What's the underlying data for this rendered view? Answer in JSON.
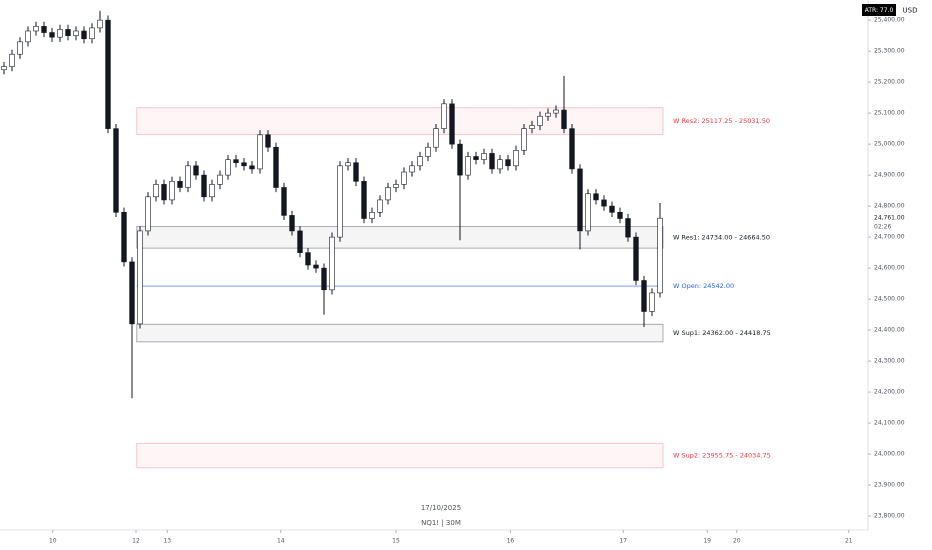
{
  "chart_data": {
    "type": "candlestick",
    "header": {
      "indicator": "ATR: 77.0",
      "currency": "USD"
    },
    "footer": {
      "date": "17/10/2025",
      "symbol": "NQ1! | 30M"
    },
    "up_color": "#ffffff",
    "down_color": "#131722",
    "edge_color": "#131722",
    "open": [
      25240,
      25250,
      25290,
      25330,
      25365,
      25380,
      25360,
      25345,
      25370,
      25350,
      25365,
      25340,
      25375,
      25400,
      25050,
      24780,
      24620,
      24420,
      24720,
      24830,
      24870,
      24820,
      24880,
      24860,
      24930,
      24900,
      24830,
      24870,
      24900,
      24950,
      24940,
      24930,
      24920,
      25030,
      24990,
      24860,
      24770,
      24720,
      24650,
      24610,
      24600,
      24530,
      24700,
      24930,
      24940,
      24880,
      24760,
      24780,
      24820,
      24860,
      24870,
      24910,
      24930,
      24960,
      24990,
      25050,
      25130,
      25000,
      24900,
      24960,
      24950,
      24970,
      24920,
      24950,
      24930,
      24980,
      25050,
      25060,
      25090,
      25100,
      25110,
      25050,
      24920,
      24720,
      24840,
      24820,
      24800,
      24780,
      24760,
      24700,
      24560,
      24460,
      24520
    ],
    "high": [
      25265,
      25305,
      25345,
      25380,
      25395,
      25395,
      25375,
      25385,
      25385,
      25380,
      25380,
      25390,
      25430,
      25415,
      25065,
      24795,
      24635,
      24735,
      24845,
      24885,
      24885,
      24895,
      24895,
      24945,
      24945,
      24915,
      24885,
      24915,
      24965,
      24965,
      24955,
      24945,
      25045,
      25045,
      25005,
      24875,
      24785,
      24735,
      24665,
      24625,
      24615,
      24715,
      24945,
      24955,
      24955,
      24895,
      24795,
      24835,
      24875,
      24885,
      24925,
      24945,
      24975,
      25005,
      25065,
      25145,
      25145,
      25015,
      24975,
      24975,
      24985,
      24985,
      24965,
      24965,
      24995,
      25065,
      25075,
      25105,
      25115,
      25125,
      25220,
      25065,
      24935,
      24855,
      24855,
      24835,
      24815,
      24795,
      24775,
      24715,
      24575,
      24535,
      24810
    ],
    "low": [
      25225,
      25235,
      25275,
      25315,
      25350,
      25345,
      25330,
      25330,
      25335,
      25335,
      25325,
      25325,
      25360,
      25035,
      24765,
      24605,
      24180,
      24405,
      24705,
      24815,
      24805,
      24805,
      24845,
      24845,
      24885,
      24815,
      24815,
      24855,
      24885,
      24925,
      24915,
      24905,
      24905,
      24975,
      24845,
      24755,
      24705,
      24635,
      24595,
      24585,
      24450,
      24515,
      24685,
      24915,
      24865,
      24745,
      24745,
      24765,
      24805,
      24845,
      24855,
      24895,
      24915,
      24945,
      24975,
      25035,
      24985,
      24690,
      24885,
      24935,
      24935,
      24905,
      24905,
      24915,
      24915,
      24965,
      25035,
      25045,
      25075,
      25085,
      25035,
      24905,
      24660,
      24705,
      24805,
      24785,
      24765,
      24745,
      24685,
      24545,
      24410,
      24445,
      24505
    ],
    "close": [
      25250,
      25290,
      25330,
      25365,
      25380,
      25360,
      25345,
      25370,
      25350,
      25365,
      25340,
      25375,
      25400,
      25050,
      24780,
      24620,
      24420,
      24720,
      24830,
      24870,
      24820,
      24880,
      24860,
      24930,
      24900,
      24830,
      24870,
      24900,
      24950,
      24940,
      24930,
      24920,
      25030,
      24990,
      24860,
      24770,
      24720,
      24650,
      24610,
      24600,
      24530,
      24700,
      24930,
      24940,
      24880,
      24760,
      24780,
      24820,
      24860,
      24870,
      24910,
      24930,
      24960,
      24990,
      25050,
      25130,
      25000,
      24900,
      24960,
      24950,
      24970,
      24920,
      24950,
      24930,
      24980,
      25050,
      25060,
      25090,
      25100,
      25110,
      25050,
      24920,
      24720,
      24840,
      24820,
      24800,
      24780,
      24760,
      24700,
      24560,
      24460,
      24520,
      24761
    ],
    "xlim": [
      -0.5,
      108
    ],
    "xticks": [
      {
        "value": 6.1,
        "label": "10"
      },
      {
        "value": 16.5,
        "label": "12"
      },
      {
        "value": 20.4,
        "label": "13"
      },
      {
        "value": 34.6,
        "label": "14"
      },
      {
        "value": 49,
        "label": "15"
      },
      {
        "value": 63.3,
        "label": "16"
      },
      {
        "value": 77.4,
        "label": "17"
      },
      {
        "value": 87.9,
        "label": "19"
      },
      {
        "value": 91.6,
        "label": "20"
      },
      {
        "value": 105.6,
        "label": "21"
      }
    ],
    "ylim": [
      23755,
      25465
    ],
    "yticks": [
      {
        "value": 23800,
        "label": "23,800.00"
      },
      {
        "value": 23900,
        "label": "23,900.00"
      },
      {
        "value": 24000,
        "label": "24,000.00"
      },
      {
        "value": 24100,
        "label": "24,100.00"
      },
      {
        "value": 24200,
        "label": "24,200.00"
      },
      {
        "value": 24300,
        "label": "24,300.00"
      },
      {
        "value": 24400,
        "label": "24,400.00"
      },
      {
        "value": 24500,
        "label": "24,500.00"
      },
      {
        "value": 24600,
        "label": "24,600.00"
      },
      {
        "value": 24700,
        "label": "24,700.00"
      },
      {
        "value": 24800,
        "label": "24,800.00"
      },
      {
        "value": 24900,
        "label": "24,900.00"
      },
      {
        "value": 25000,
        "label": "25,000.00"
      },
      {
        "value": 25100,
        "label": "25,100.00"
      },
      {
        "value": 25200,
        "label": "25,200.00"
      },
      {
        "value": 25300,
        "label": "25,300.00"
      },
      {
        "value": 25400,
        "label": "25,400.00"
      }
    ],
    "last_price": {
      "value": 24761,
      "label": "24,761.00",
      "countdown": "02:26"
    },
    "zones": [
      {
        "label": "W Res2: 25117.25 - 25031.50",
        "from": 25117.25,
        "to": 25031.5,
        "color": "#f23645",
        "border": "#f7b8c2",
        "fill": "#fff5f7"
      },
      {
        "label": "W Res1: 24734.00 - 24664.50",
        "from": 24734,
        "to": 24664.5,
        "color": "#131722",
        "border": "#9598a1",
        "fill": "#f5f5f5"
      },
      {
        "label": "W Sup1: 24362.00 - 24418.75",
        "from": 24362,
        "to": 24418.75,
        "color": "#131722",
        "border": "#9598a1",
        "fill": "#f5f5f5"
      },
      {
        "label": "W Sup2: 23955.75 - 24034.75",
        "from": 23955.75,
        "to": 24034.75,
        "color": "#f23645",
        "border": "#f7b8c2",
        "fill": "#fff5f7"
      }
    ],
    "open_line": {
      "label": "W Open: 24542.00",
      "value": 24542,
      "color": "#2962ff"
    },
    "zone_start": 16.6
  }
}
